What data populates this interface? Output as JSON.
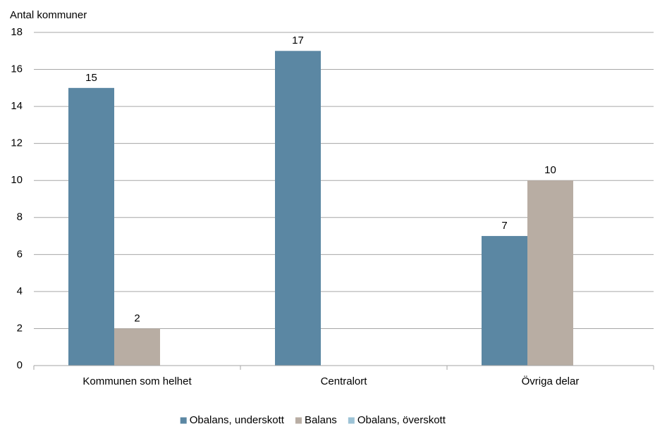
{
  "chart_data": {
    "type": "bar",
    "y_label": "Antal kommuner",
    "categories": [
      "Kommunen som helhet",
      "Centralort",
      "Övriga delar"
    ],
    "series": [
      {
        "name": "Obalans, underskott",
        "color": "#5b87a3",
        "values": [
          15,
          17,
          7
        ]
      },
      {
        "name": "Balans",
        "color": "#b8ada3",
        "values": [
          2,
          null,
          10
        ]
      },
      {
        "name": "Obalans, överskott",
        "color": "#9dc3d6",
        "values": [
          null,
          null,
          null
        ]
      }
    ],
    "ylim": [
      0,
      18
    ],
    "yticks": [
      0,
      2,
      4,
      6,
      8,
      10,
      12,
      14,
      16,
      18
    ],
    "grid": true,
    "legend": "bottom"
  }
}
